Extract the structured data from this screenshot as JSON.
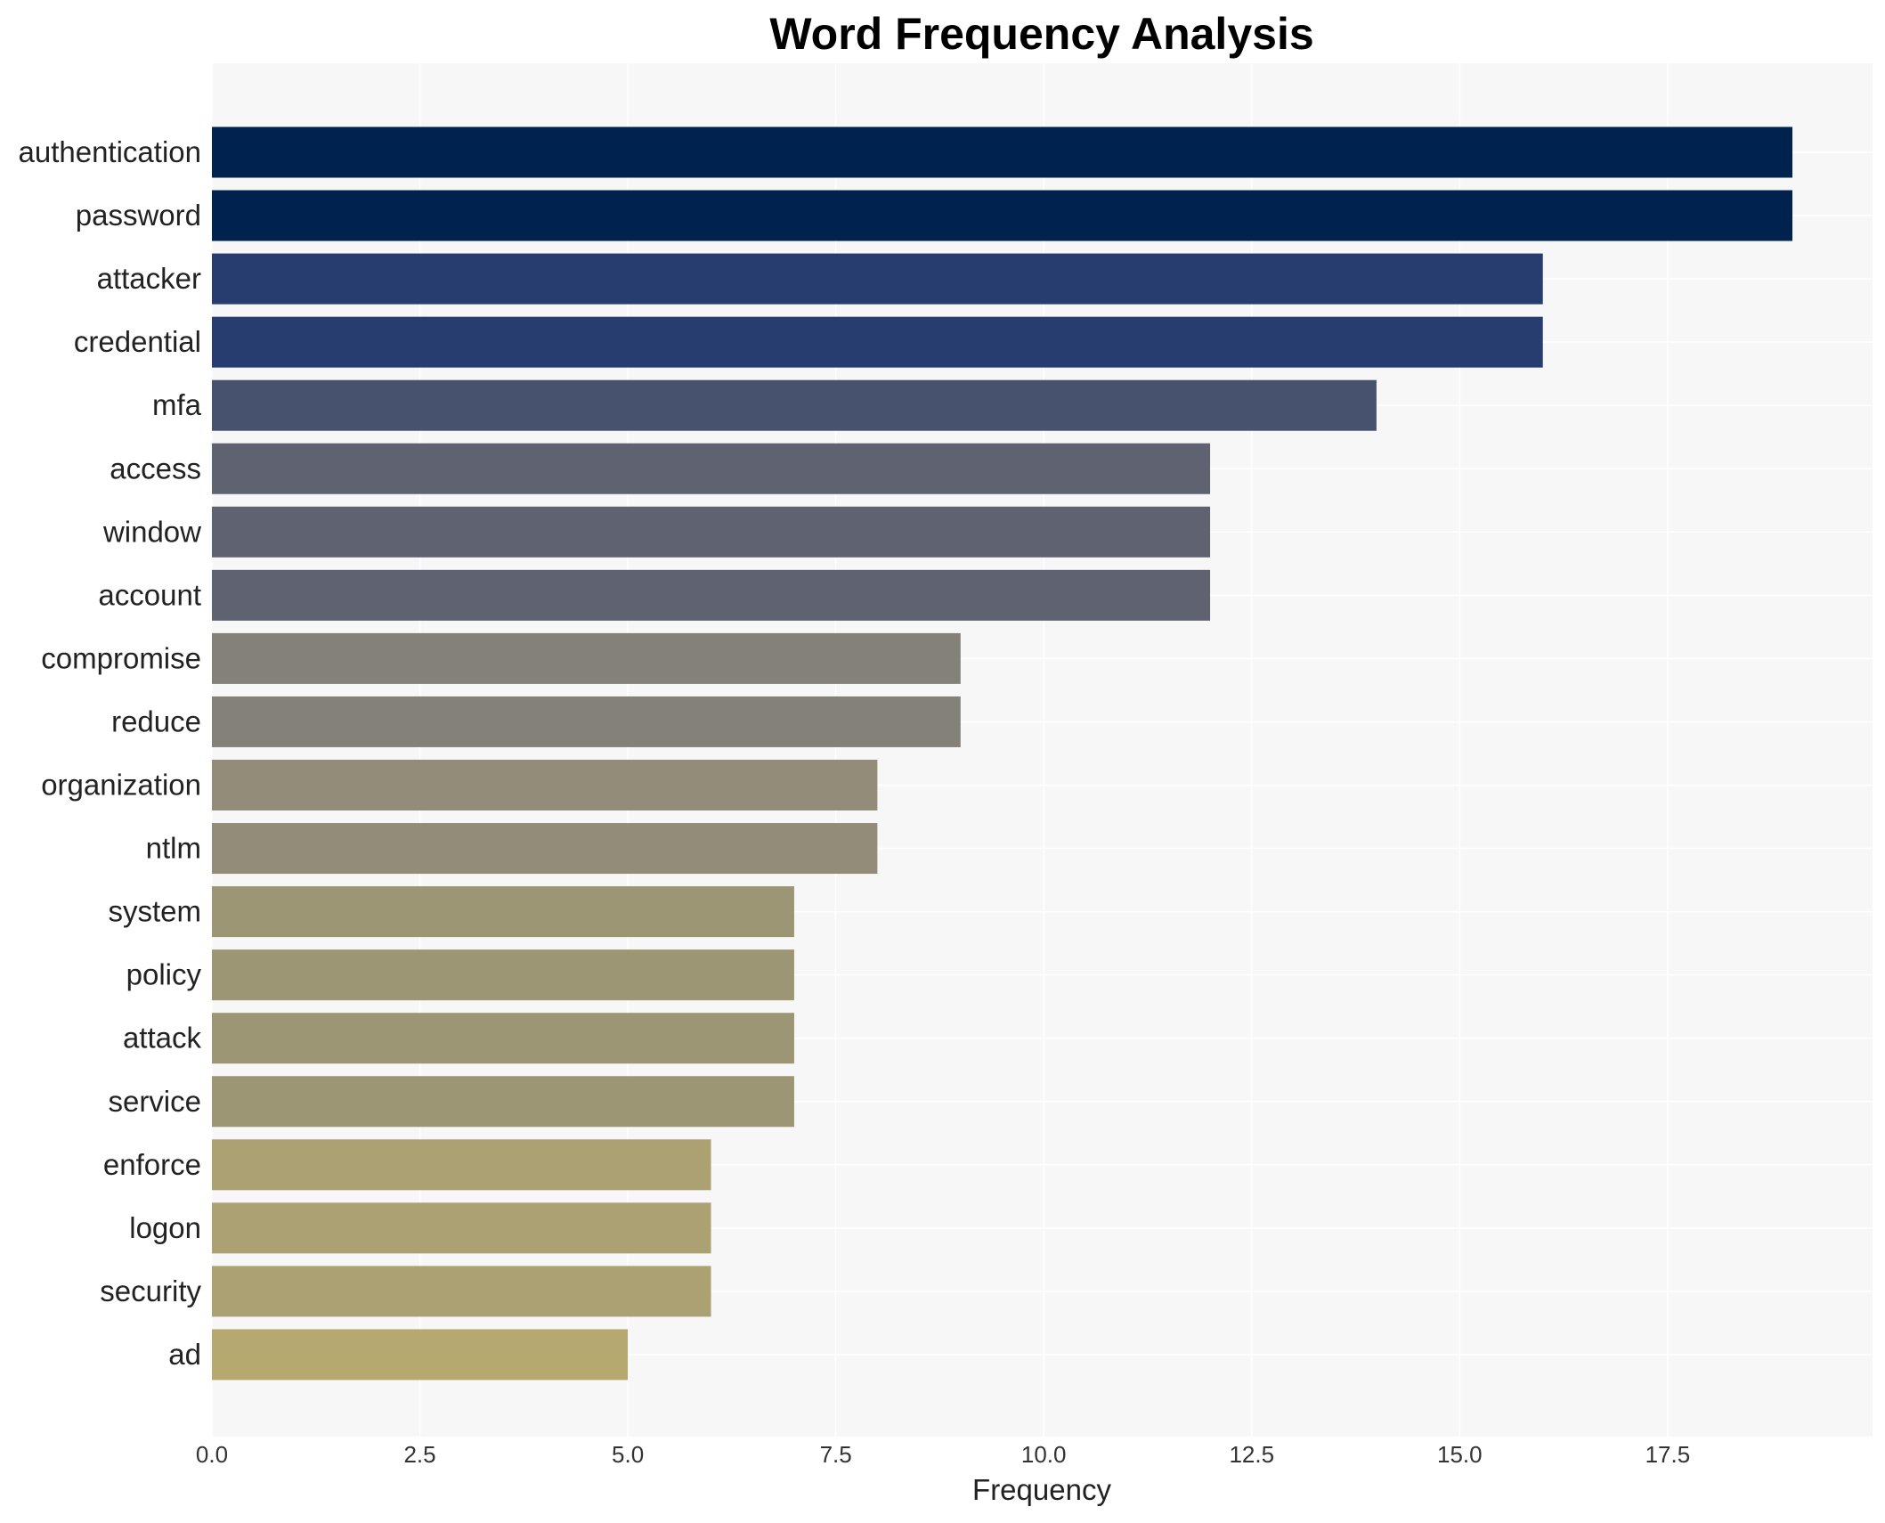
{
  "chart_data": {
    "type": "bar",
    "orientation": "horizontal",
    "title": "Word Frequency Analysis",
    "xlabel": "Frequency",
    "ylabel": "",
    "xlim": [
      0,
      20
    ],
    "xticks": [
      0.0,
      2.5,
      5.0,
      7.5,
      10.0,
      12.5,
      15.0,
      17.5
    ],
    "xtick_labels": [
      "0.0",
      "2.5",
      "5.0",
      "7.5",
      "10.0",
      "12.5",
      "15.0",
      "17.5"
    ],
    "grid": true,
    "legend": "none",
    "categories": [
      "authentication",
      "password",
      "attacker",
      "credential",
      "mfa",
      "access",
      "window",
      "account",
      "compromise",
      "reduce",
      "organization",
      "ntlm",
      "system",
      "policy",
      "attack",
      "service",
      "enforce",
      "logon",
      "security",
      "ad"
    ],
    "values": [
      19,
      19,
      16,
      16,
      14,
      12,
      12,
      12,
      9,
      9,
      8,
      8,
      7,
      7,
      7,
      7,
      6,
      6,
      6,
      5
    ],
    "colors": [
      "#00224e",
      "#00224e",
      "#283d6f",
      "#283d6f",
      "#46526e",
      "#5f6371",
      "#5f6371",
      "#5f6371",
      "#848179",
      "#848179",
      "#928c78",
      "#928c78",
      "#9c9675",
      "#9c9675",
      "#9c9675",
      "#9c9675",
      "#aba173",
      "#aba173",
      "#aba173",
      "#b6a970"
    ]
  },
  "style": {
    "plot_background": "#f7f7f7",
    "grid_color": "#ffffff"
  }
}
